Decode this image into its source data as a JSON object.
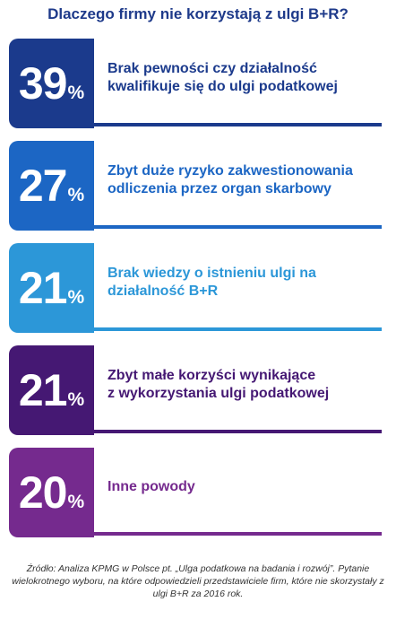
{
  "title": "Dlaczego firmy nie korzystają z ulgi B+R?",
  "chart_data": {
    "type": "bar",
    "title": "Dlaczego firmy nie korzystają z ulgi B+R?",
    "unit": "%",
    "categories": [
      "Brak pewności czy działalność\nkwalifikuje się do ulgi podatkowej",
      "Zbyt duże ryzyko zakwestionowania\nodliczenia przez organ skarbowy",
      "Brak wiedzy o istnieniu ulgi na\ndziałalność B+R",
      "Zbyt małe korzyści wynikające\nz wykorzystania ulgi podatkowej",
      "Inne powody"
    ],
    "values": [
      39,
      27,
      21,
      21,
      20
    ],
    "colors": [
      "#1b3a8c",
      "#1c66c4",
      "#2c97d8",
      "#451873",
      "#752a8e"
    ]
  },
  "source": "Źródło: Analiza KPMG w Polsce pt. „Ulga podatkowa na badania i rozwój”. Pytanie wielokrotnego wyboru, na które odpowiedzieli przedstawiciele firm, które nie skorzystały z ulgi B+R za 2016 rok."
}
